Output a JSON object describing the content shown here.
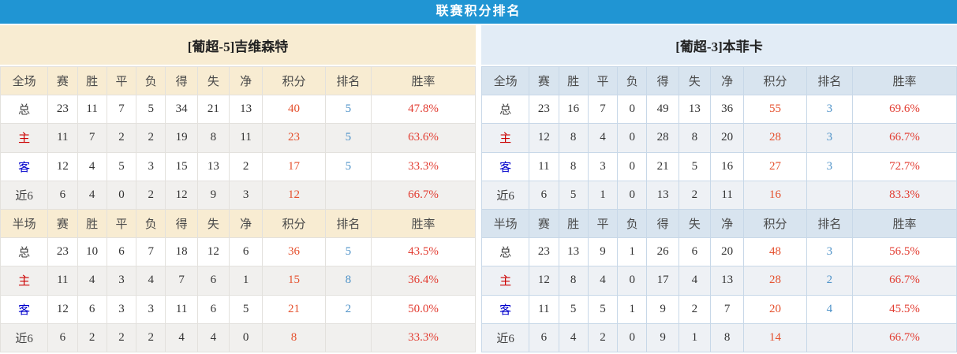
{
  "title": "联赛积分排名",
  "table": {
    "section_full_label": "全场",
    "section_half_label": "半场",
    "columns": [
      "赛",
      "胜",
      "平",
      "负",
      "得",
      "失",
      "净",
      "积分",
      "排名",
      "胜率"
    ]
  },
  "teams": [
    {
      "name": "[葡超-5]吉维森特",
      "full": [
        {
          "label": "总",
          "values": [
            23,
            11,
            7,
            5,
            34,
            21,
            13
          ],
          "points": 40,
          "rank": "5",
          "rate": "47.8%"
        },
        {
          "label": "主",
          "values": [
            11,
            7,
            2,
            2,
            19,
            8,
            11
          ],
          "points": 23,
          "rank": "5",
          "rate": "63.6%"
        },
        {
          "label": "客",
          "values": [
            12,
            4,
            5,
            3,
            15,
            13,
            2
          ],
          "points": 17,
          "rank": "5",
          "rate": "33.3%"
        },
        {
          "label": "近6",
          "values": [
            6,
            4,
            0,
            2,
            12,
            9,
            3
          ],
          "points": 12,
          "rank": "",
          "rate": "66.7%"
        }
      ],
      "half": [
        {
          "label": "总",
          "values": [
            23,
            10,
            6,
            7,
            18,
            12,
            6
          ],
          "points": 36,
          "rank": "5",
          "rate": "43.5%"
        },
        {
          "label": "主",
          "values": [
            11,
            4,
            3,
            4,
            7,
            6,
            1
          ],
          "points": 15,
          "rank": "8",
          "rate": "36.4%"
        },
        {
          "label": "客",
          "values": [
            12,
            6,
            3,
            3,
            11,
            6,
            5
          ],
          "points": 21,
          "rank": "2",
          "rate": "50.0%"
        },
        {
          "label": "近6",
          "values": [
            6,
            2,
            2,
            2,
            4,
            4,
            0
          ],
          "points": 8,
          "rank": "",
          "rate": "33.3%"
        }
      ]
    },
    {
      "name": "[葡超-3]本菲卡",
      "full": [
        {
          "label": "总",
          "values": [
            23,
            16,
            7,
            0,
            49,
            13,
            36
          ],
          "points": 55,
          "rank": "3",
          "rate": "69.6%"
        },
        {
          "label": "主",
          "values": [
            12,
            8,
            4,
            0,
            28,
            8,
            20
          ],
          "points": 28,
          "rank": "3",
          "rate": "66.7%"
        },
        {
          "label": "客",
          "values": [
            11,
            8,
            3,
            0,
            21,
            5,
            16
          ],
          "points": 27,
          "rank": "3",
          "rate": "72.7%"
        },
        {
          "label": "近6",
          "values": [
            6,
            5,
            1,
            0,
            13,
            2,
            11
          ],
          "points": 16,
          "rank": "",
          "rate": "83.3%"
        }
      ],
      "half": [
        {
          "label": "总",
          "values": [
            23,
            13,
            9,
            1,
            26,
            6,
            20
          ],
          "points": 48,
          "rank": "3",
          "rate": "56.5%"
        },
        {
          "label": "主",
          "values": [
            12,
            8,
            4,
            0,
            17,
            4,
            13
          ],
          "points": 28,
          "rank": "2",
          "rate": "66.7%"
        },
        {
          "label": "客",
          "values": [
            11,
            5,
            5,
            1,
            9,
            2,
            7
          ],
          "points": 20,
          "rank": "4",
          "rate": "45.5%"
        },
        {
          "label": "近6",
          "values": [
            6,
            4,
            2,
            0,
            9,
            1,
            8
          ],
          "points": 14,
          "rank": "",
          "rate": "66.7%"
        }
      ]
    }
  ],
  "colors": {
    "accent": "#2095d3",
    "left_panel_header": "#f8ecd2",
    "right_panel_header": "#e2ecf6",
    "right_column_header": "#d8e4ef",
    "points_text": "#e5512e",
    "rate_text": "#e23c31",
    "rank_text": "#4e92c8",
    "home_row_label": "#cc0000",
    "away_row_label": "#0000cc"
  }
}
